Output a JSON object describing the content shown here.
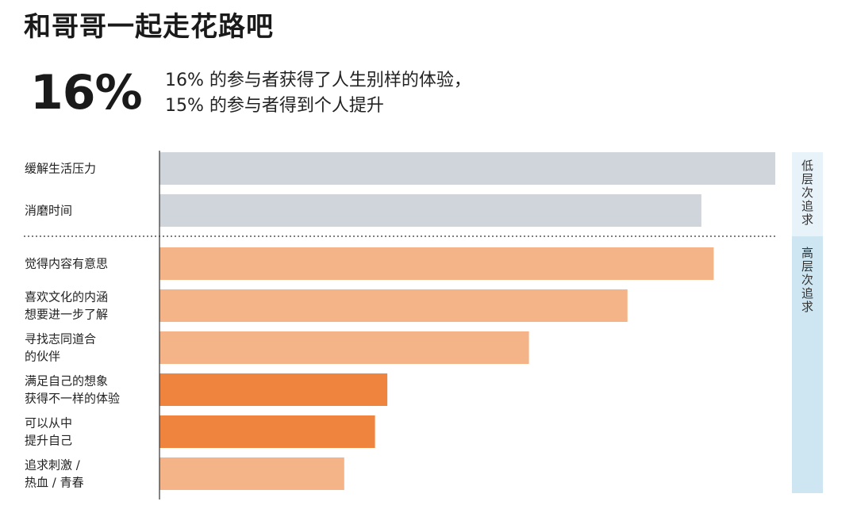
{
  "header": {
    "title": "和哥哥一起走花路吧",
    "stat": "16%",
    "note_lines": [
      "16% 的参与者获得了人生别样的体验，",
      "15% 的参与者得到个人提升"
    ]
  },
  "colors": {
    "gray": "#cfd5da",
    "light_orange": "#f4b488",
    "dark_orange": "#ee843e",
    "band_low": "#e7f3f9",
    "band_high": "#cde6f2"
  },
  "chart_data": {
    "type": "bar",
    "orientation": "horizontal",
    "categories": [
      [
        "缓解生活压力"
      ],
      [
        "消磨时间"
      ],
      [
        "觉得内容有意思"
      ],
      [
        "喜欢文化的内涵",
        "想要进一步了解"
      ],
      [
        "寻找志同道合",
        "的伙伴"
      ],
      [
        "满足自己的想象",
        "获得不一样的体验"
      ],
      [
        "可以从中",
        "提升自己"
      ],
      [
        "追求刺激 /",
        "热血 / 青春"
      ]
    ],
    "values": [
      100,
      88,
      90,
      76,
      60,
      37,
      35,
      30
    ],
    "color_groups": [
      "gray",
      "gray",
      "light_orange",
      "light_orange",
      "light_orange",
      "dark_orange",
      "dark_orange",
      "light_orange"
    ],
    "xlim": [
      0,
      100
    ],
    "groups": [
      {
        "label": "低层次追求",
        "chars": [
          "低",
          "层",
          "次",
          "追",
          "求"
        ],
        "count": 2
      },
      {
        "label": "高层次追求",
        "chars": [
          "高",
          "层",
          "次",
          "追",
          "求"
        ],
        "count": 6
      }
    ],
    "divider": "dotted",
    "grid": false,
    "legend": "none"
  }
}
